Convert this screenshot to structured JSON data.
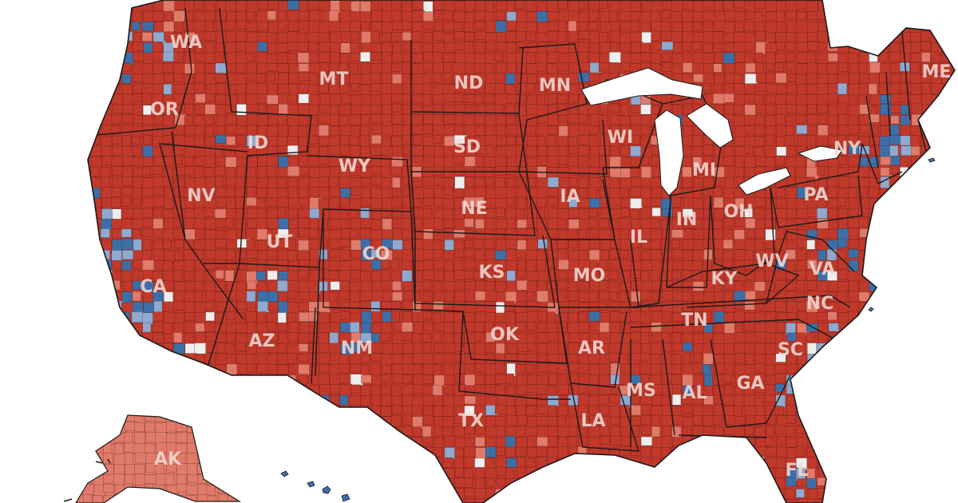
{
  "colors": {
    "background": "#ffffff",
    "solid_republican": "#c0392b",
    "lean_republican": "#e07a6a",
    "solid_democrat": "#3d6fa7",
    "lean_democrat": "#8fa9cf",
    "no_data": "#eeeeee",
    "boundary": "#1a1a1a"
  },
  "states": [
    {
      "code": "WA",
      "label": "WA",
      "lean": "solid_republican"
    },
    {
      "code": "OR",
      "label": "OR",
      "lean": "solid_republican"
    },
    {
      "code": "CA",
      "label": "CA",
      "lean": "solid_republican"
    },
    {
      "code": "NV",
      "label": "NV",
      "lean": "solid_republican"
    },
    {
      "code": "ID",
      "label": "ID",
      "lean": "solid_republican"
    },
    {
      "code": "MT",
      "label": "MT",
      "lean": "solid_republican"
    },
    {
      "code": "WY",
      "label": "WY",
      "lean": "solid_republican"
    },
    {
      "code": "UT",
      "label": "UT",
      "lean": "solid_republican"
    },
    {
      "code": "AZ",
      "label": "AZ",
      "lean": "solid_republican"
    },
    {
      "code": "CO",
      "label": "CO",
      "lean": "solid_republican"
    },
    {
      "code": "NM",
      "label": "NM",
      "lean": "solid_republican"
    },
    {
      "code": "ND",
      "label": "ND",
      "lean": "solid_republican"
    },
    {
      "code": "SD",
      "label": "SD",
      "lean": "solid_republican"
    },
    {
      "code": "NE",
      "label": "NE",
      "lean": "solid_republican"
    },
    {
      "code": "KS",
      "label": "KS",
      "lean": "solid_republican"
    },
    {
      "code": "OK",
      "label": "OK",
      "lean": "solid_republican"
    },
    {
      "code": "TX",
      "label": "TX",
      "lean": "solid_republican"
    },
    {
      "code": "MN",
      "label": "MN",
      "lean": "solid_republican"
    },
    {
      "code": "IA",
      "label": "IA",
      "lean": "solid_republican"
    },
    {
      "code": "MO",
      "label": "MO",
      "lean": "solid_republican"
    },
    {
      "code": "AR",
      "label": "AR",
      "lean": "solid_republican"
    },
    {
      "code": "LA",
      "label": "LA",
      "lean": "solid_republican"
    },
    {
      "code": "WI",
      "label": "WI",
      "lean": "solid_republican"
    },
    {
      "code": "IL",
      "label": "IL",
      "lean": "solid_republican"
    },
    {
      "code": "MI",
      "label": "MI",
      "lean": "solid_republican"
    },
    {
      "code": "IN",
      "label": "IN",
      "lean": "solid_republican"
    },
    {
      "code": "OH",
      "label": "OH",
      "lean": "solid_republican"
    },
    {
      "code": "KY",
      "label": "KY",
      "lean": "solid_republican"
    },
    {
      "code": "TN",
      "label": "TN",
      "lean": "solid_republican"
    },
    {
      "code": "MS",
      "label": "MS",
      "lean": "solid_republican"
    },
    {
      "code": "AL",
      "label": "AL",
      "lean": "solid_republican"
    },
    {
      "code": "GA",
      "label": "GA",
      "lean": "solid_republican"
    },
    {
      "code": "FL",
      "label": "FL",
      "lean": "solid_republican"
    },
    {
      "code": "SC",
      "label": "SC",
      "lean": "solid_republican"
    },
    {
      "code": "NC",
      "label": "NC",
      "lean": "solid_republican"
    },
    {
      "code": "VA",
      "label": "VA",
      "lean": "solid_republican"
    },
    {
      "code": "WV",
      "label": "WV",
      "lean": "solid_republican"
    },
    {
      "code": "PA",
      "label": "PA",
      "lean": "solid_republican"
    },
    {
      "code": "NY",
      "label": "NY",
      "lean": "solid_republican"
    },
    {
      "code": "ME",
      "label": "ME",
      "lean": "solid_republican"
    },
    {
      "code": "AK",
      "label": "AK",
      "lean": "lean_republican"
    }
  ]
}
